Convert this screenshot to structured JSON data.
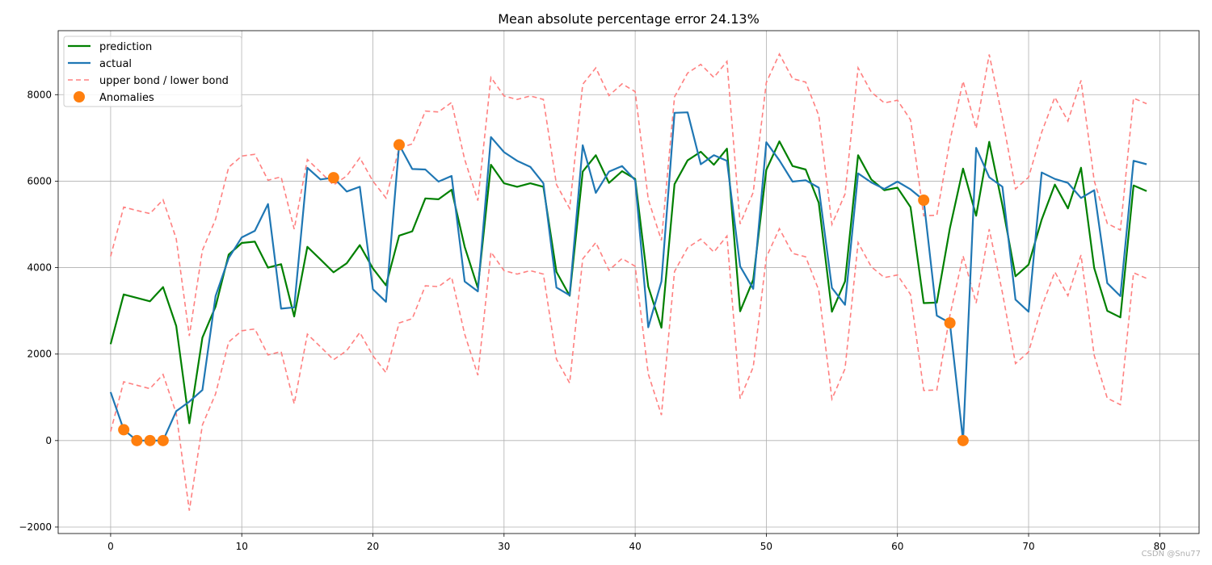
{
  "chart_data": {
    "type": "line",
    "title": "Mean absolute percentage error 24.13%",
    "xlabel": "",
    "ylabel": "",
    "xlim": [
      -4,
      83
    ],
    "ylim": [
      -2150,
      9480
    ],
    "x_ticks": [
      0,
      10,
      20,
      30,
      40,
      50,
      60,
      70,
      80
    ],
    "y_ticks": [
      -2000,
      0,
      2000,
      4000,
      6000,
      8000
    ],
    "grid": true,
    "legend_position": "top-left",
    "series": [
      {
        "name": "prediction",
        "color": "#008000",
        "style": "solid",
        "x": [
          0,
          1,
          2,
          3,
          4,
          5,
          6,
          7,
          8,
          9,
          10,
          11,
          12,
          13,
          14,
          15,
          16,
          17,
          18,
          19,
          20,
          21,
          22,
          23,
          24,
          25,
          26,
          27,
          28,
          29,
          30,
          31,
          32,
          33,
          34,
          35,
          36,
          37,
          38,
          39,
          40,
          41,
          42,
          43,
          44,
          45,
          46,
          47,
          48,
          49,
          50,
          51,
          52,
          53,
          54,
          55,
          56,
          57,
          58,
          59,
          60,
          61,
          62,
          63,
          64,
          65,
          66,
          67,
          68,
          69,
          70,
          71,
          72,
          73,
          74,
          75,
          76,
          77,
          78,
          79
        ],
        "y": [
          2230,
          3380,
          3300,
          3220,
          3550,
          2650,
          400,
          2380,
          3100,
          4300,
          4570,
          4600,
          4000,
          4080,
          2870,
          4480,
          4190,
          3890,
          4100,
          4520,
          3980,
          3590,
          4740,
          4840,
          5600,
          5580,
          5800,
          4480,
          3530,
          6380,
          5950,
          5870,
          5950,
          5870,
          3900,
          3350,
          6220,
          6600,
          5960,
          6230,
          6050,
          3560,
          2610,
          5930,
          6480,
          6680,
          6380,
          6750,
          2990,
          3720,
          6260,
          6920,
          6350,
          6270,
          5500,
          2980,
          3680,
          6600,
          6040,
          5790,
          5850,
          5400,
          3180,
          3190,
          4910,
          6290,
          5200,
          6910,
          5440,
          3800,
          4070,
          5110,
          5920,
          5370,
          6310,
          3990,
          3000,
          2850,
          5900,
          5770
        ]
      },
      {
        "name": "actual",
        "color": "#1f77b4",
        "style": "solid",
        "x": [
          0,
          1,
          2,
          3,
          4,
          5,
          6,
          7,
          8,
          9,
          10,
          11,
          12,
          13,
          14,
          15,
          16,
          17,
          18,
          19,
          20,
          21,
          22,
          23,
          24,
          25,
          26,
          27,
          28,
          29,
          30,
          31,
          32,
          33,
          34,
          35,
          36,
          37,
          38,
          39,
          40,
          41,
          42,
          43,
          44,
          45,
          46,
          47,
          48,
          49,
          50,
          51,
          52,
          53,
          54,
          55,
          56,
          57,
          58,
          59,
          60,
          61,
          62,
          63,
          64,
          65,
          66,
          67,
          68,
          69,
          70,
          71,
          72,
          73,
          74,
          75,
          76,
          77,
          78,
          79
        ],
        "y": [
          1120,
          250,
          0,
          0,
          0,
          680,
          900,
          1170,
          3340,
          4220,
          4700,
          4850,
          5470,
          3050,
          3080,
          6310,
          6040,
          6080,
          5760,
          5870,
          3500,
          3210,
          6840,
          6280,
          6270,
          5990,
          6120,
          3680,
          3450,
          7020,
          6670,
          6470,
          6330,
          5950,
          3540,
          3360,
          6830,
          5730,
          6220,
          6350,
          6020,
          2620,
          3680,
          7580,
          7590,
          6390,
          6600,
          6470,
          4030,
          3510,
          6900,
          6480,
          5990,
          6020,
          5850,
          3530,
          3140,
          6180,
          5970,
          5820,
          5990,
          5810,
          5560,
          2890,
          2720,
          0,
          6770,
          6090,
          5870,
          3260,
          2980,
          6200,
          6050,
          5960,
          5610,
          5790,
          3640,
          3340,
          6470,
          6390
        ]
      },
      {
        "name": "upper bond / lower bond",
        "color": "#ff8080",
        "style": "dashed",
        "x": [
          0,
          1,
          2,
          3,
          4,
          5,
          6,
          7,
          8,
          9,
          10,
          11,
          12,
          13,
          14,
          15,
          16,
          17,
          18,
          19,
          20,
          21,
          22,
          23,
          24,
          25,
          26,
          27,
          28,
          29,
          30,
          31,
          32,
          33,
          34,
          35,
          36,
          37,
          38,
          39,
          40,
          41,
          42,
          43,
          44,
          45,
          46,
          47,
          48,
          49,
          50,
          51,
          52,
          53,
          54,
          55,
          56,
          57,
          58,
          59,
          60,
          61,
          62,
          63,
          64,
          65,
          66,
          67,
          68,
          69,
          70,
          71,
          72,
          73,
          74,
          75,
          76,
          77,
          78,
          79
        ],
        "upper": [
          4260,
          5400,
          5320,
          5250,
          5570,
          4670,
          2420,
          4400,
          5120,
          6320,
          6580,
          6620,
          6020,
          6100,
          4890,
          6500,
          6210,
          5910,
          6120,
          6540,
          6000,
          5610,
          6760,
          6860,
          7620,
          7600,
          7820,
          6500,
          5550,
          8400,
          7970,
          7890,
          7970,
          7890,
          5920,
          5370,
          8240,
          8620,
          7980,
          8250,
          8070,
          5580,
          4630,
          7950,
          8500,
          8700,
          8400,
          8770,
          5010,
          5740,
          8280,
          8940,
          8370,
          8290,
          7520,
          5000,
          5700,
          8620,
          8060,
          7810,
          7870,
          7420,
          5200,
          5210,
          6930,
          8310,
          7220,
          8930,
          7460,
          5820,
          6090,
          7130,
          7940,
          7390,
          8330,
          6010,
          5020,
          4870,
          7920,
          7790
        ],
        "lower": [
          210,
          1360,
          1280,
          1200,
          1530,
          630,
          -1620,
          360,
          1080,
          2280,
          2540,
          2580,
          1980,
          2060,
          850,
          2460,
          2170,
          1870,
          2080,
          2500,
          1960,
          1570,
          2720,
          2820,
          3580,
          3560,
          3780,
          2460,
          1510,
          4360,
          3930,
          3850,
          3930,
          3850,
          1880,
          1330,
          4200,
          4580,
          3940,
          4210,
          4030,
          1540,
          590,
          3910,
          4460,
          4660,
          4360,
          4730,
          970,
          1700,
          4240,
          4900,
          4330,
          4250,
          3480,
          960,
          1660,
          4580,
          4020,
          3770,
          3830,
          3380,
          1160,
          1170,
          2890,
          4270,
          3180,
          4890,
          3420,
          1780,
          2050,
          3090,
          3900,
          3350,
          4290,
          1970,
          980,
          830,
          3880,
          3750
        ]
      },
      {
        "name": "Anomalies",
        "color": "#ff7f0e",
        "style": "markers",
        "x": [
          1,
          2,
          3,
          4,
          17,
          22,
          62,
          64,
          65
        ],
        "y": [
          250,
          0,
          0,
          0,
          6080,
          6840,
          5560,
          2720,
          0
        ]
      }
    ],
    "watermark": "CSDN @Snu77"
  }
}
